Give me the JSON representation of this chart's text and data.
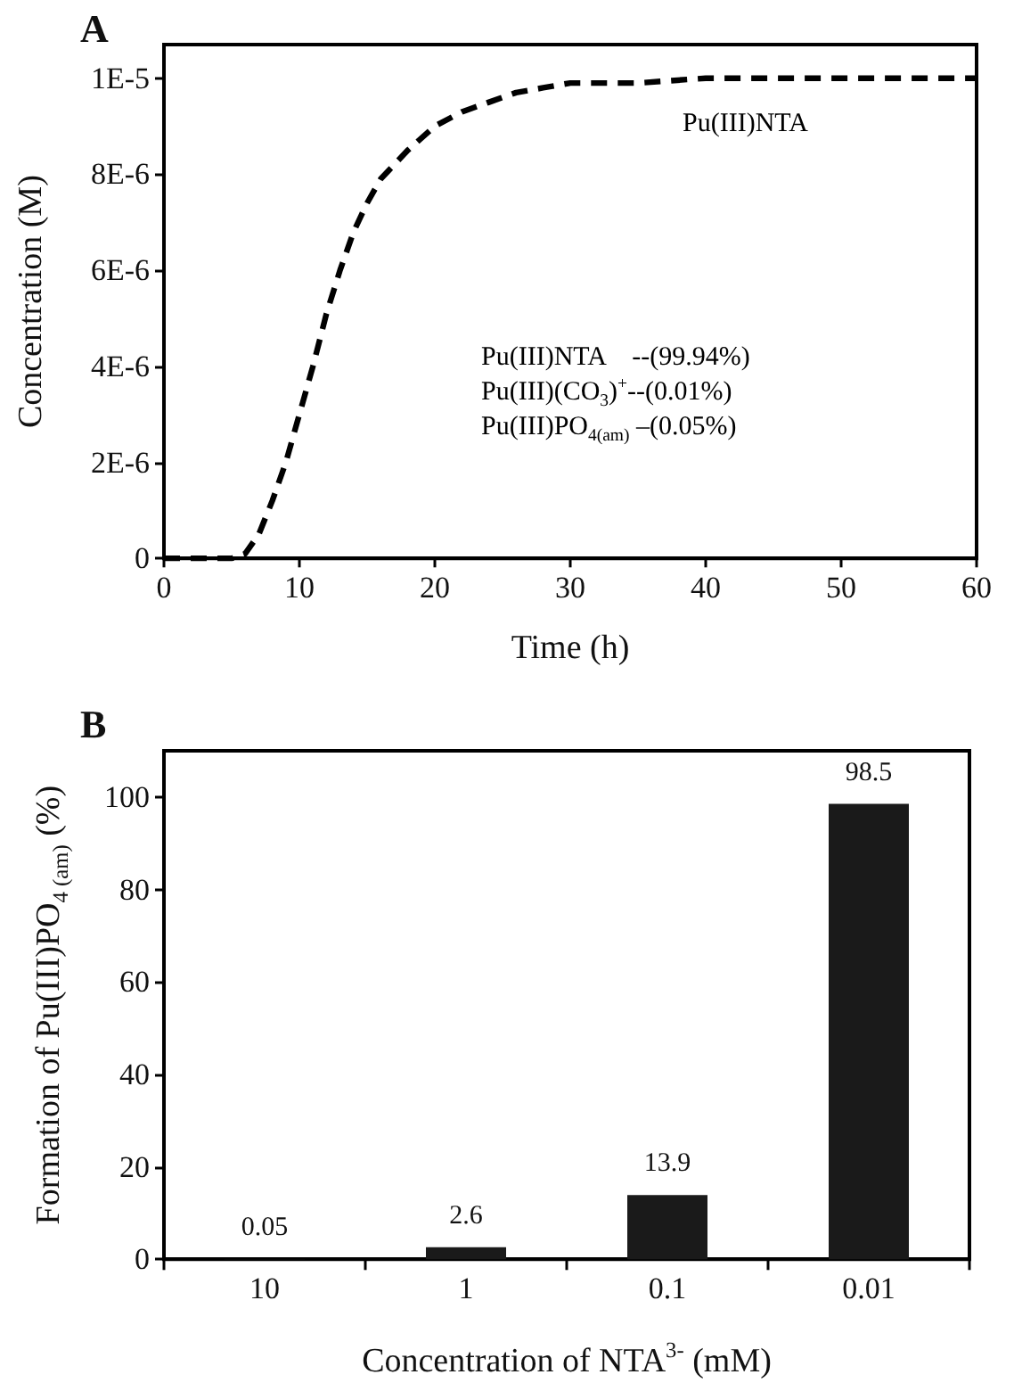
{
  "chart_data": [
    {
      "type": "line",
      "title": "A",
      "xlabel": "Time (h)",
      "ylabel": "Concentration (M)",
      "series": [
        {
          "color": "#000000",
          "x": [
            0,
            2,
            4,
            5,
            6,
            7,
            8,
            9,
            10,
            11,
            12,
            13,
            14,
            15,
            16,
            17,
            18,
            20,
            22,
            24,
            26,
            28,
            30,
            35,
            40,
            50,
            60
          ],
          "values": [
            0,
            0,
            0,
            0,
            1e-07,
            5e-07,
            1.2e-06,
            2e-06,
            3e-06,
            4e-06,
            5.1e-06,
            6e-06,
            6.8e-06,
            7.4e-06,
            7.9e-06,
            8.2e-06,
            8.5e-06,
            9e-06,
            9.3e-06,
            9.5e-06,
            9.7e-06,
            9.8e-06,
            9.9e-06,
            9.9e-06,
            1e-05,
            1e-05,
            1e-05
          ]
        }
      ],
      "xlim": [
        0,
        60
      ],
      "xticks": [
        0,
        10,
        20,
        30,
        40,
        50,
        60
      ],
      "ylim": [
        0,
        1.07e-05
      ],
      "yticks": [
        0,
        {
          "value": 2e-06,
          "label": "2E-6"
        },
        {
          "value": 4e-06,
          "label": "4E-6"
        },
        {
          "value": 6e-06,
          "label": "6E-6"
        },
        {
          "value": 8e-06,
          "label": "8E-6"
        },
        {
          "value": 1e-05,
          "label": "1E-5"
        }
      ],
      "grid": false,
      "marker": "none",
      "line_style": "dashed",
      "annotations": [
        "Pu(III)NTA",
        "Pu(III)NTA    --(99.94%)",
        "Pu(III)(CO$_{3}$)$^{+}$--(0.01%)",
        "Pu(III)PO$_{4(am)}$ –(0.05%)"
      ]
    },
    {
      "type": "bar",
      "title": "B",
      "xlabel": "Concentration of NTA$^{3-}$ (mM)",
      "ylabel": "Formation of Pu(III)PO$_{4 (am)}$ (%)",
      "categories": [
        "10",
        "1",
        "0.1",
        "0.01"
      ],
      "values": [
        0.05,
        2.6,
        13.9,
        98.5
      ],
      "color": "#1a1a1a",
      "ylim": [
        0,
        110
      ],
      "yticks": [
        0,
        20,
        40,
        60,
        80,
        100
      ],
      "grid": false,
      "data_labels": true
    }
  ]
}
